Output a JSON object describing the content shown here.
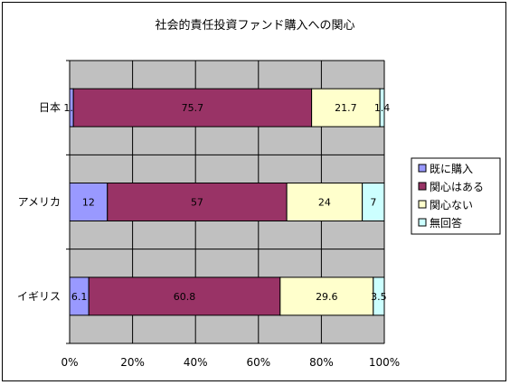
{
  "chart_data": {
    "type": "bar",
    "orientation": "horizontal",
    "stacked": "percent",
    "title": "社会的責任投資ファンド購入への関心",
    "categories": [
      "日本",
      "アメリカ",
      "イギリス"
    ],
    "series": [
      {
        "name": "既に購入",
        "color": "#9999ff",
        "values": [
          1.2,
          12,
          6.1
        ]
      },
      {
        "name": "関心はある",
        "color": "#993366",
        "values": [
          75.7,
          57,
          60.8
        ]
      },
      {
        "name": "関心ない",
        "color": "#ffffcc",
        "values": [
          21.7,
          24,
          29.6
        ]
      },
      {
        "name": "無回答",
        "color": "#ccffff",
        "values": [
          1.4,
          7,
          3.5
        ]
      }
    ],
    "data_labels": [
      [
        "1.2",
        "75.7",
        "21.7",
        "1.4"
      ],
      [
        "12",
        "57",
        "24",
        "7"
      ],
      [
        "6.1",
        "60.8",
        "29.6",
        "3.5"
      ]
    ],
    "x_ticks": [
      "0%",
      "20%",
      "40%",
      "60%",
      "80%",
      "100%"
    ],
    "xlim": [
      0,
      100
    ],
    "grid": true,
    "plot_background": "#c0c0c0",
    "legend_position": "right"
  }
}
